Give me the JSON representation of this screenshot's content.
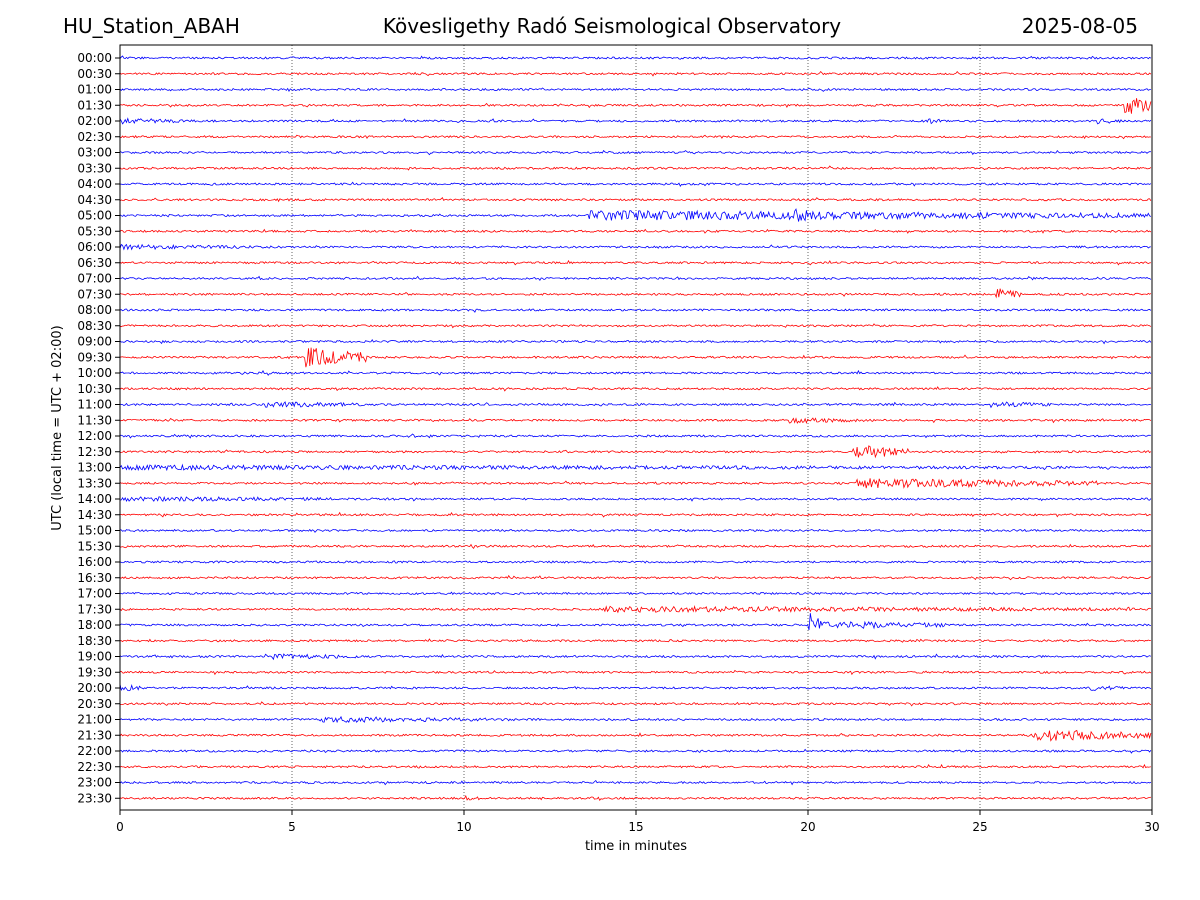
{
  "header": {
    "station": "HU_Station_ABAH",
    "observatory": "Kövesligethy Radó Seismological Observatory",
    "date": "2025-08-05"
  },
  "chart_data": {
    "type": "line",
    "title": "Kövesligethy Radó Seismological Observatory",
    "xlabel": "time in minutes",
    "ylabel": "UTC (local time = UTC + 02:00)",
    "xlim": [
      0,
      30
    ],
    "xticks": [
      0,
      5,
      10,
      15,
      20,
      25,
      30
    ],
    "grid": "vertical dotted lines at 5-minute ticks",
    "row_labels": [
      "00:00",
      "00:30",
      "01:00",
      "01:30",
      "02:00",
      "02:30",
      "03:00",
      "03:30",
      "04:00",
      "04:30",
      "05:00",
      "05:30",
      "06:00",
      "06:30",
      "07:00",
      "07:30",
      "08:00",
      "08:30",
      "09:00",
      "09:30",
      "10:00",
      "10:30",
      "11:00",
      "11:30",
      "12:00",
      "12:30",
      "13:00",
      "13:30",
      "14:00",
      "14:30",
      "15:00",
      "15:30",
      "16:00",
      "16:30",
      "17:00",
      "17:30",
      "18:00",
      "18:30",
      "19:00",
      "19:30",
      "20:00",
      "20:30",
      "21:00",
      "21:30",
      "22:00",
      "22:30",
      "23:00",
      "23:30"
    ],
    "colors": [
      "#0000ff",
      "#ff0000"
    ],
    "events": [
      {
        "row": "01:30",
        "start": 29.2,
        "end": 30,
        "amp": 10
      },
      {
        "row": "02:00",
        "start": 0,
        "end": 2.2,
        "amp": 3
      },
      {
        "row": "02:00",
        "start": 23.5,
        "end": 23.9,
        "amp": 3
      },
      {
        "row": "02:00",
        "start": 28.4,
        "end": 29.2,
        "amp": 3
      },
      {
        "row": "05:00",
        "start": 13.6,
        "end": 30,
        "amp": 5
      },
      {
        "row": "05:00",
        "start": 19.6,
        "end": 20.2,
        "amp": 8
      },
      {
        "row": "06:00",
        "start": 0,
        "end": 4.8,
        "amp": 2.5
      },
      {
        "row": "07:30",
        "start": 25.4,
        "end": 26.2,
        "amp": 7
      },
      {
        "row": "09:30",
        "start": 5.4,
        "end": 7.2,
        "amp": 10
      },
      {
        "row": "11:00",
        "start": 4.2,
        "end": 7.2,
        "amp": 3
      },
      {
        "row": "11:00",
        "start": 25.3,
        "end": 27.2,
        "amp": 3
      },
      {
        "row": "11:30",
        "start": 19.4,
        "end": 22,
        "amp": 3
      },
      {
        "row": "12:30",
        "start": 21.3,
        "end": 23,
        "amp": 7
      },
      {
        "row": "13:00",
        "start": 0,
        "end": 30,
        "amp": 2.5
      },
      {
        "row": "13:30",
        "start": 21.4,
        "end": 28.5,
        "amp": 5
      },
      {
        "row": "14:00",
        "start": 0,
        "end": 8,
        "amp": 2.5
      },
      {
        "row": "17:30",
        "start": 14,
        "end": 30,
        "amp": 3
      },
      {
        "row": "18:00",
        "start": 20,
        "end": 20.4,
        "amp": 16
      },
      {
        "row": "18:00",
        "start": 20.4,
        "end": 24,
        "amp": 4
      },
      {
        "row": "19:00",
        "start": 4.2,
        "end": 7,
        "amp": 3
      },
      {
        "row": "20:00",
        "start": 0,
        "end": 0.6,
        "amp": 4
      },
      {
        "row": "20:00",
        "start": 28.2,
        "end": 29.2,
        "amp": 3
      },
      {
        "row": "21:00",
        "start": 5.8,
        "end": 11.5,
        "amp": 3
      },
      {
        "row": "21:30",
        "start": 26.5,
        "end": 30,
        "amp": 6
      },
      {
        "row": "23:30",
        "start": 10,
        "end": 10.6,
        "amp": 2.5
      }
    ]
  }
}
